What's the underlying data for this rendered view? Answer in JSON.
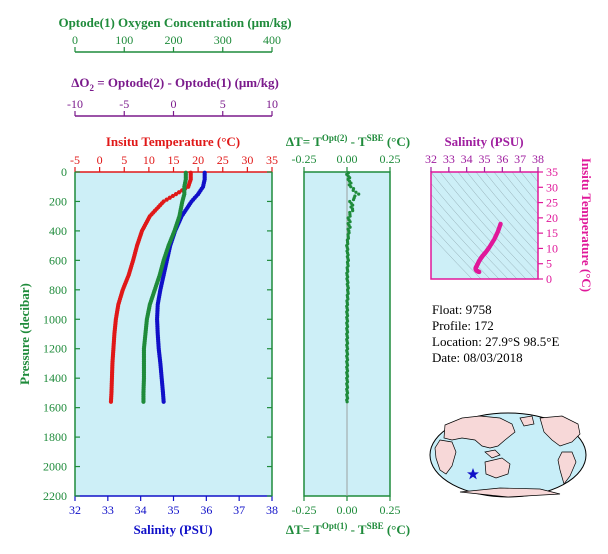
{
  "colors": {
    "green": "#1f8b3b",
    "purple": "#7b1a8c",
    "red": "#e01818",
    "blue": "#1010c8",
    "magenta": "#e0189a",
    "panel_fill": "#cdeff7",
    "land": "#f7d8d8",
    "ocean": "#c8eef8"
  },
  "header": {
    "oxygen_axis": {
      "title": "Optode(1) Oxygen Concentration (μm/kg)",
      "ticks": [
        "0",
        "100",
        "200",
        "300",
        "400"
      ]
    },
    "do2_axis": {
      "title_prefix": "ΔO",
      "title_sub": "2",
      "title_rest": " = Optode(2) - Optode(1)      (μm/kg)",
      "ticks": [
        "-10",
        "-5",
        "0",
        "5",
        "10"
      ]
    }
  },
  "info": {
    "float_label": "Float:",
    "float_value": "9758",
    "profile_label": "Profile:",
    "profile_value": "172",
    "location_label": "Location:",
    "location_value": "27.9°S  98.5°E",
    "date_label": "Date:",
    "date_value": "08/03/2018"
  },
  "chart_data": [
    {
      "type": "scatter",
      "panel": "main",
      "title": "Insitu Temperature (°C)",
      "ylabel": "Pressure (decibar)",
      "xlabel": "Salinity (PSU)",
      "ylim": [
        2200,
        0
      ],
      "y_ticks": [
        "0",
        "200",
        "400",
        "600",
        "800",
        "1000",
        "1200",
        "1400",
        "1600",
        "1800",
        "2000",
        "2200"
      ],
      "temperature_axis": {
        "range": [
          -5,
          35
        ],
        "ticks": [
          "-5",
          "0",
          "5",
          "10",
          "15",
          "20",
          "25",
          "30",
          "35"
        ]
      },
      "salinity_axis": {
        "range": [
          32,
          38
        ],
        "ticks": [
          "32",
          "33",
          "34",
          "35",
          "36",
          "37",
          "38"
        ]
      },
      "oxygen_axis": {
        "range": [
          0,
          400
        ]
      },
      "series": [
        {
          "name": "Temperature",
          "color": "red",
          "pressure": [
            5,
            50,
            100,
            150,
            200,
            300,
            400,
            500,
            600,
            700,
            800,
            900,
            1000,
            1100,
            1200,
            1300,
            1400,
            1500,
            1560
          ],
          "values": [
            18.5,
            18.5,
            18.0,
            15.5,
            13.0,
            10.2,
            8.6,
            7.6,
            6.8,
            5.9,
            4.7,
            3.8,
            3.3,
            3.0,
            2.8,
            2.6,
            2.5,
            2.4,
            2.3
          ]
        },
        {
          "name": "Salinity",
          "color": "blue",
          "pressure": [
            5,
            50,
            100,
            150,
            200,
            300,
            400,
            500,
            600,
            700,
            800,
            900,
            1000,
            1100,
            1200,
            1300,
            1400,
            1500,
            1560
          ],
          "values": [
            35.95,
            35.95,
            35.9,
            35.75,
            35.55,
            35.25,
            35.05,
            34.9,
            34.8,
            34.7,
            34.6,
            34.52,
            34.5,
            34.52,
            34.55,
            34.6,
            34.64,
            34.68,
            34.7
          ]
        },
        {
          "name": "Oxygen",
          "color": "green",
          "pressure": [
            5,
            50,
            100,
            150,
            200,
            300,
            400,
            500,
            600,
            700,
            800,
            900,
            1000,
            1100,
            1200,
            1300,
            1400,
            1500,
            1560
          ],
          "values": [
            225,
            225,
            222,
            222,
            218,
            212,
            202,
            190,
            180,
            172,
            162,
            152,
            146,
            143,
            140,
            140,
            140,
            139,
            139
          ]
        }
      ]
    },
    {
      "type": "scatter",
      "panel": "delta_t",
      "title_top": "ΔT= T^Opt(2) - T^SBE (°C)",
      "title_bottom": "ΔT= T^Opt(1) - T^SBE (°C)",
      "x_range": [
        -0.25,
        0.25
      ],
      "x_ticks": [
        "-0.25",
        "0.00",
        "0.25"
      ],
      "series": [
        {
          "name": "ΔT",
          "color": "green",
          "pressure": [
            5,
            50,
            100,
            150,
            200,
            250,
            300,
            400,
            500,
            600,
            700,
            800,
            900,
            1000,
            1100,
            1200,
            1300,
            1400,
            1500,
            1560
          ],
          "values": [
            0.0,
            0.01,
            0.02,
            0.06,
            0.02,
            0.03,
            0.01,
            0.01,
            0.0,
            0.005,
            0.0,
            0.005,
            0.0,
            0.0,
            0.0,
            0.0,
            0.0,
            0.0,
            0.0,
            0.0
          ]
        }
      ]
    },
    {
      "type": "scatter",
      "panel": "ts",
      "xlabel": "Salinity (PSU)",
      "ylabel": "Insitu Temperature (°C)",
      "x_range": [
        32,
        38
      ],
      "x_ticks": [
        "32",
        "33",
        "34",
        "35",
        "36",
        "37",
        "38"
      ],
      "y_range": [
        0,
        35
      ],
      "y_ticks": [
        "0",
        "5",
        "10",
        "15",
        "20",
        "25",
        "30",
        "35"
      ],
      "series": [
        {
          "name": "T-S",
          "color": "magenta",
          "salinity": [
            34.7,
            34.62,
            34.55,
            34.5,
            34.52,
            34.6,
            34.7,
            34.8,
            34.9,
            35.05,
            35.25,
            35.55,
            35.75,
            35.9
          ],
          "temperature": [
            2.3,
            2.5,
            2.8,
            3.3,
            3.8,
            4.7,
            5.9,
            6.8,
            7.6,
            8.6,
            10.2,
            13.0,
            15.5,
            18.0
          ]
        }
      ]
    }
  ]
}
